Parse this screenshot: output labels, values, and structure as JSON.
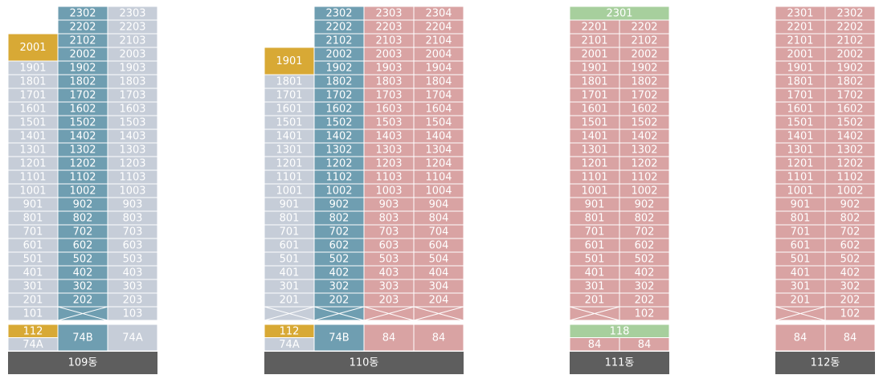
{
  "buildings": [
    {
      "name": "109동",
      "columns": [
        {
          "color": "#c6cdd8",
          "top": {
            "label": "2001",
            "color": "#d8a935"
          },
          "cells": [
            "1901",
            "1801",
            "1701",
            "1601",
            "1501",
            "1401",
            "1301",
            "1201",
            "1101",
            "1001",
            "901",
            "801",
            "701",
            "601",
            "501",
            "401",
            "301",
            "201",
            "101"
          ]
        },
        {
          "color": "#6f9eb1",
          "cells": [
            "2302",
            "2202",
            "2102",
            "2002",
            "1902",
            "1802",
            "1702",
            "1602",
            "1502",
            "1402",
            "1302",
            "1202",
            "1102",
            "1002",
            "902",
            "802",
            "702",
            "602",
            "502",
            "402",
            "302",
            "202",
            null
          ]
        },
        {
          "color": "#c6cdd8",
          "cells": [
            "2303",
            "2203",
            "2103",
            "2003",
            "1903",
            "1803",
            "1703",
            "1603",
            "1503",
            "1403",
            "1303",
            "1203",
            "1103",
            "1003",
            "903",
            "803",
            "703",
            "603",
            "503",
            "403",
            "303",
            "203",
            "103"
          ]
        }
      ],
      "types": [
        [
          {
            "label": "112",
            "color": "#d8a935"
          },
          {
            "label": "74A",
            "color": "#c6cdd8"
          }
        ],
        [
          {
            "label": "74B",
            "color": "#6f9eb1"
          }
        ],
        [
          {
            "label": "74A",
            "color": "#c6cdd8"
          }
        ]
      ]
    },
    {
      "name": "110동",
      "columns": [
        {
          "color": "#c6cdd8",
          "top": {
            "label": "1901",
            "color": "#d8a935"
          },
          "cells": [
            "1801",
            "1701",
            "1601",
            "1501",
            "1401",
            "1301",
            "1201",
            "1101",
            "1001",
            "901",
            "801",
            "701",
            "601",
            "501",
            "401",
            "301",
            "201",
            null
          ]
        },
        {
          "color": "#6f9eb1",
          "cells": [
            "2302",
            "2202",
            "2102",
            "2002",
            "1902",
            "1802",
            "1702",
            "1602",
            "1502",
            "1402",
            "1302",
            "1202",
            "1102",
            "1002",
            "902",
            "802",
            "702",
            "602",
            "502",
            "402",
            "302",
            "202",
            null
          ]
        },
        {
          "color": "#d9a3a3",
          "cells": [
            "2303",
            "2203",
            "2103",
            "2003",
            "1903",
            "1803",
            "1703",
            "1603",
            "1503",
            "1403",
            "1303",
            "1203",
            "1103",
            "1003",
            "903",
            "803",
            "703",
            "603",
            "503",
            "403",
            "303",
            "203",
            null
          ]
        },
        {
          "color": "#d9a3a3",
          "cells": [
            "2304",
            "2204",
            "2104",
            "2004",
            "1904",
            "1804",
            "1704",
            "1604",
            "1504",
            "1404",
            "1304",
            "1204",
            "1104",
            "1004",
            "904",
            "804",
            "704",
            "604",
            "504",
            "404",
            "304",
            "204",
            null
          ]
        }
      ],
      "types": [
        [
          {
            "label": "112",
            "color": "#d8a935"
          },
          {
            "label": "74A",
            "color": "#c6cdd8"
          }
        ],
        [
          {
            "label": "74B",
            "color": "#6f9eb1"
          }
        ],
        [
          {
            "label": "84",
            "color": "#d9a3a3"
          }
        ],
        [
          {
            "label": "84",
            "color": "#d9a3a3"
          }
        ]
      ]
    },
    {
      "name": "111동",
      "banner": {
        "label": "2301",
        "color": "#a7cf9d"
      },
      "columns": [
        {
          "color": "#d9a3a3",
          "cells": [
            "2201",
            "2101",
            "2001",
            "1901",
            "1801",
            "1701",
            "1601",
            "1501",
            "1401",
            "1301",
            "1201",
            "1101",
            "1001",
            "901",
            "801",
            "701",
            "601",
            "501",
            "401",
            "301",
            "201",
            null
          ]
        },
        {
          "color": "#d9a3a3",
          "cells": [
            "2202",
            "2102",
            "2002",
            "1902",
            "1802",
            "1702",
            "1602",
            "1502",
            "1402",
            "1302",
            "1202",
            "1102",
            "1002",
            "902",
            "802",
            "702",
            "602",
            "502",
            "402",
            "302",
            "202",
            "102"
          ]
        }
      ],
      "type_banner": {
        "label": "118",
        "color": "#a7cf9d"
      },
      "types": [
        [
          {
            "label": "84",
            "color": "#d9a3a3"
          }
        ],
        [
          {
            "label": "84",
            "color": "#d9a3a3"
          }
        ]
      ]
    },
    {
      "name": "112동",
      "columns": [
        {
          "color": "#d9a3a3",
          "cells": [
            "2301",
            "2201",
            "2101",
            "2001",
            "1901",
            "1801",
            "1701",
            "1601",
            "1501",
            "1401",
            "1301",
            "1201",
            "1101",
            "1001",
            "901",
            "801",
            "701",
            "601",
            "501",
            "401",
            "301",
            "201",
            null
          ]
        },
        {
          "color": "#d9a3a3",
          "cells": [
            "2302",
            "2202",
            "2102",
            "2002",
            "1902",
            "1802",
            "1702",
            "1602",
            "1502",
            "1402",
            "1302",
            "1202",
            "1102",
            "1002",
            "902",
            "802",
            "702",
            "602",
            "502",
            "402",
            "302",
            "202",
            "102"
          ]
        }
      ],
      "types": [
        [
          {
            "label": "84",
            "color": "#d9a3a3"
          }
        ],
        [
          {
            "label": "84",
            "color": "#d9a3a3"
          }
        ]
      ]
    }
  ]
}
